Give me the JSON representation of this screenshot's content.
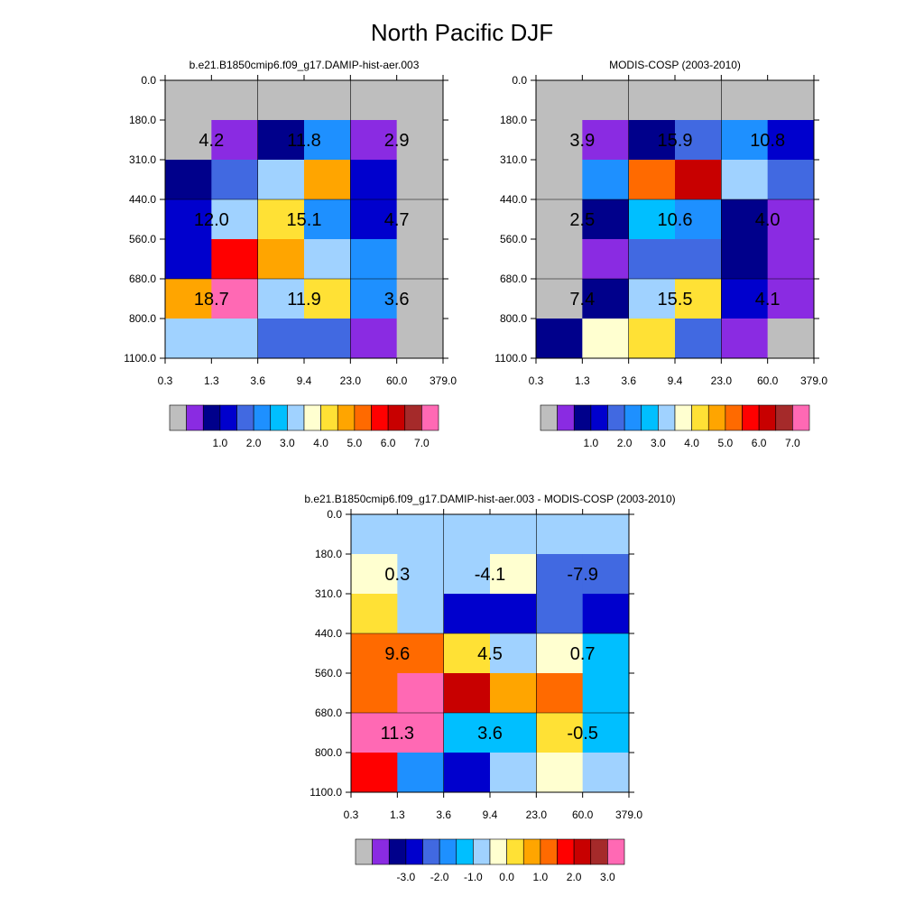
{
  "figure": {
    "title": "North Pacific DJF"
  },
  "colors": {
    "missing": "#bebebe",
    "grid_line": "#000000"
  },
  "chart_data": [
    {
      "type": "heatmap",
      "panel": "model",
      "title": "b.e21.B1850cmip6.f09_g17.DAMIP-hist-aer.003",
      "xlabel": "",
      "ylabel": "",
      "x_ticks": [
        "0.3",
        "1.3",
        "3.6",
        "9.4",
        "23.0",
        "60.0",
        "379.0"
      ],
      "y_ticks": [
        "0.0",
        "180.0",
        "310.0",
        "440.0",
        "560.0",
        "680.0",
        "800.0",
        "1100.0"
      ],
      "cells_color_level": [
        [
          0,
          0,
          0,
          0,
          0,
          0
        ],
        [
          0,
          1,
          2,
          5,
          1,
          0
        ],
        [
          2,
          4,
          7,
          10,
          3,
          0
        ],
        [
          3,
          7,
          9,
          5,
          3,
          0
        ],
        [
          3,
          12,
          10,
          7,
          5,
          0
        ],
        [
          10,
          15,
          7,
          9,
          5,
          0
        ],
        [
          7,
          7,
          4,
          4,
          1,
          0
        ]
      ],
      "totals": [
        {
          "col": 0,
          "row": 0,
          "text": "4.2"
        },
        {
          "col": 1,
          "row": 0,
          "text": "11.8"
        },
        {
          "col": 2,
          "row": 0,
          "text": "2.9"
        },
        {
          "col": 0,
          "row": 1,
          "text": "12.0"
        },
        {
          "col": 1,
          "row": 1,
          "text": "15.1"
        },
        {
          "col": 2,
          "row": 1,
          "text": "4.7"
        },
        {
          "col": 0,
          "row": 2,
          "text": "18.7"
        },
        {
          "col": 1,
          "row": 2,
          "text": "11.9"
        },
        {
          "col": 2,
          "row": 2,
          "text": "3.6"
        }
      ],
      "colorbar": {
        "labels": [
          "1.0",
          "2.0",
          "3.0",
          "4.0",
          "5.0",
          "6.0",
          "7.0"
        ],
        "colors": [
          "#bebebe",
          "#8a2be2",
          "#00008b",
          "#0000cd",
          "#4169e1",
          "#1e90ff",
          "#00bfff",
          "#a0d2ff",
          "#ffffd0",
          "#ffe135",
          "#ffa500",
          "#ff6a00",
          "#ff0000",
          "#c80000",
          "#a52a2a",
          "#ff69b4"
        ]
      }
    },
    {
      "type": "heatmap",
      "panel": "observations",
      "title": "MODIS-COSP (2003-2010)",
      "xlabel": "",
      "ylabel": "",
      "x_ticks": [
        "0.3",
        "1.3",
        "3.6",
        "9.4",
        "23.0",
        "60.0",
        "379.0"
      ],
      "y_ticks": [
        "0.0",
        "180.0",
        "310.0",
        "440.0",
        "560.0",
        "680.0",
        "800.0",
        "1100.0"
      ],
      "cells_color_level": [
        [
          0,
          0,
          0,
          0,
          0,
          0
        ],
        [
          0,
          1,
          2,
          4,
          5,
          3
        ],
        [
          0,
          5,
          11,
          13,
          7,
          4
        ],
        [
          0,
          2,
          6,
          5,
          2,
          1
        ],
        [
          0,
          1,
          4,
          4,
          2,
          1
        ],
        [
          0,
          2,
          7,
          9,
          3,
          1
        ],
        [
          2,
          8,
          9,
          4,
          1,
          0
        ]
      ],
      "totals": [
        {
          "col": 0,
          "row": 0,
          "text": "3.9"
        },
        {
          "col": 1,
          "row": 0,
          "text": "15.9"
        },
        {
          "col": 2,
          "row": 0,
          "text": "10.8"
        },
        {
          "col": 0,
          "row": 1,
          "text": "2.5"
        },
        {
          "col": 1,
          "row": 1,
          "text": "10.6"
        },
        {
          "col": 2,
          "row": 1,
          "text": "4.0"
        },
        {
          "col": 0,
          "row": 2,
          "text": "7.4"
        },
        {
          "col": 1,
          "row": 2,
          "text": "15.5"
        },
        {
          "col": 2,
          "row": 2,
          "text": "4.1"
        }
      ],
      "colorbar": {
        "labels": [
          "1.0",
          "2.0",
          "3.0",
          "4.0",
          "5.0",
          "6.0",
          "7.0"
        ],
        "colors": [
          "#bebebe",
          "#8a2be2",
          "#00008b",
          "#0000cd",
          "#4169e1",
          "#1e90ff",
          "#00bfff",
          "#a0d2ff",
          "#ffffd0",
          "#ffe135",
          "#ffa500",
          "#ff6a00",
          "#ff0000",
          "#c80000",
          "#a52a2a",
          "#ff69b4"
        ]
      }
    },
    {
      "type": "heatmap",
      "panel": "difference",
      "title": "b.e21.B1850cmip6.f09_g17.DAMIP-hist-aer.003 - MODIS-COSP (2003-2010)",
      "xlabel": "",
      "ylabel": "",
      "x_ticks": [
        "0.3",
        "1.3",
        "3.6",
        "9.4",
        "23.0",
        "60.0",
        "379.0"
      ],
      "y_ticks": [
        "0.0",
        "180.0",
        "310.0",
        "440.0",
        "560.0",
        "680.0",
        "800.0",
        "1100.0"
      ],
      "cells_color_level": [
        [
          7,
          7,
          7,
          7,
          7,
          7
        ],
        [
          8,
          7,
          7,
          8,
          4,
          4
        ],
        [
          9,
          7,
          3,
          3,
          4,
          3
        ],
        [
          11,
          11,
          9,
          7,
          8,
          6
        ],
        [
          11,
          15,
          13,
          10,
          11,
          6
        ],
        [
          15,
          15,
          6,
          6,
          9,
          6
        ],
        [
          12,
          5,
          3,
          7,
          8,
          7
        ]
      ],
      "totals": [
        {
          "col": 0,
          "row": 0,
          "text": "0.3"
        },
        {
          "col": 1,
          "row": 0,
          "text": "-4.1"
        },
        {
          "col": 2,
          "row": 0,
          "text": "-7.9"
        },
        {
          "col": 0,
          "row": 1,
          "text": "9.6"
        },
        {
          "col": 1,
          "row": 1,
          "text": "4.5"
        },
        {
          "col": 2,
          "row": 1,
          "text": "0.7"
        },
        {
          "col": 0,
          "row": 2,
          "text": "11.3"
        },
        {
          "col": 1,
          "row": 2,
          "text": "3.6"
        },
        {
          "col": 2,
          "row": 2,
          "text": "-0.5"
        }
      ],
      "colorbar": {
        "labels": [
          "-3.0",
          "-2.0",
          "-1.0",
          "0.0",
          "1.0",
          "2.0",
          "3.0"
        ],
        "colors": [
          "#bebebe",
          "#8a2be2",
          "#00008b",
          "#0000cd",
          "#4169e1",
          "#1e90ff",
          "#00bfff",
          "#a0d2ff",
          "#ffffd0",
          "#ffe135",
          "#ffa500",
          "#ff6a00",
          "#ff0000",
          "#c80000",
          "#a52a2a",
          "#ff69b4"
        ]
      }
    }
  ]
}
